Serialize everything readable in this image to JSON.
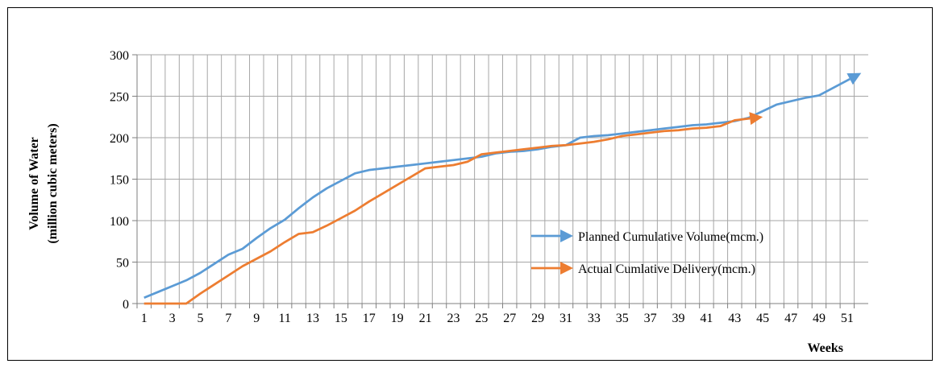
{
  "chart_data": {
    "type": "line",
    "title": "",
    "xlabel": "Weeks",
    "ylabel_line1": "Volume of Water",
    "ylabel_line2": "(million cubic meters)",
    "x_ticks": [
      "1",
      "3",
      "5",
      "7",
      "9",
      "11",
      "13",
      "15",
      "17",
      "19",
      "21",
      "23",
      "25",
      "27",
      "29",
      "31",
      "33",
      "35",
      "37",
      "39",
      "41",
      "43",
      "45",
      "47",
      "49",
      "51"
    ],
    "y_ticks": [
      "0",
      "50",
      "100",
      "150",
      "200",
      "250",
      "300"
    ],
    "xlim": [
      0.5,
      52.5
    ],
    "ylim": [
      0,
      300
    ],
    "grid": true,
    "legend_position": "right-inside",
    "series": [
      {
        "name": "Planned Cumulative Volume(mcm.)",
        "color": "#5b9bd5",
        "x": [
          1,
          2,
          3,
          4,
          5,
          6,
          7,
          8,
          9,
          10,
          11,
          12,
          13,
          14,
          15,
          16,
          17,
          18,
          19,
          20,
          21,
          22,
          23,
          24,
          25,
          26,
          27,
          28,
          29,
          30,
          31,
          32,
          33,
          34,
          35,
          36,
          37,
          38,
          39,
          40,
          41,
          42,
          43,
          44,
          45,
          46,
          47,
          48,
          49,
          50,
          51,
          52
        ],
        "values": [
          7,
          14,
          21,
          28,
          37,
          48,
          59,
          66,
          79,
          91,
          101,
          115,
          128,
          139,
          148,
          157,
          161,
          163,
          165,
          167,
          169,
          171,
          173,
          175,
          177,
          181,
          183,
          184,
          186,
          189,
          191,
          200,
          202,
          203,
          205,
          207,
          209,
          211,
          213,
          215,
          216,
          218,
          220,
          224,
          232,
          240,
          244,
          248,
          251,
          260,
          269,
          278
        ]
      },
      {
        "name": "Actual Cumlative Delivery(mcm.)",
        "color": "#ed7d31",
        "x": [
          1,
          2,
          3,
          4,
          5,
          6,
          7,
          8,
          9,
          10,
          11,
          12,
          13,
          14,
          15,
          16,
          17,
          18,
          19,
          20,
          21,
          22,
          23,
          24,
          25,
          26,
          27,
          28,
          29,
          30,
          31,
          32,
          33,
          34,
          35,
          36,
          37,
          38,
          39,
          40,
          41,
          42,
          43,
          44,
          45
        ],
        "values": [
          0,
          0,
          0,
          0,
          12,
          23,
          34,
          45,
          54,
          63,
          74,
          84,
          86,
          94,
          103,
          112,
          123,
          133,
          143,
          153,
          163,
          165,
          167,
          171,
          180,
          182,
          184,
          186,
          188,
          190,
          191,
          193,
          195,
          198,
          202,
          204,
          206,
          208,
          209,
          211,
          212,
          214,
          221,
          223,
          225
        ]
      }
    ]
  }
}
